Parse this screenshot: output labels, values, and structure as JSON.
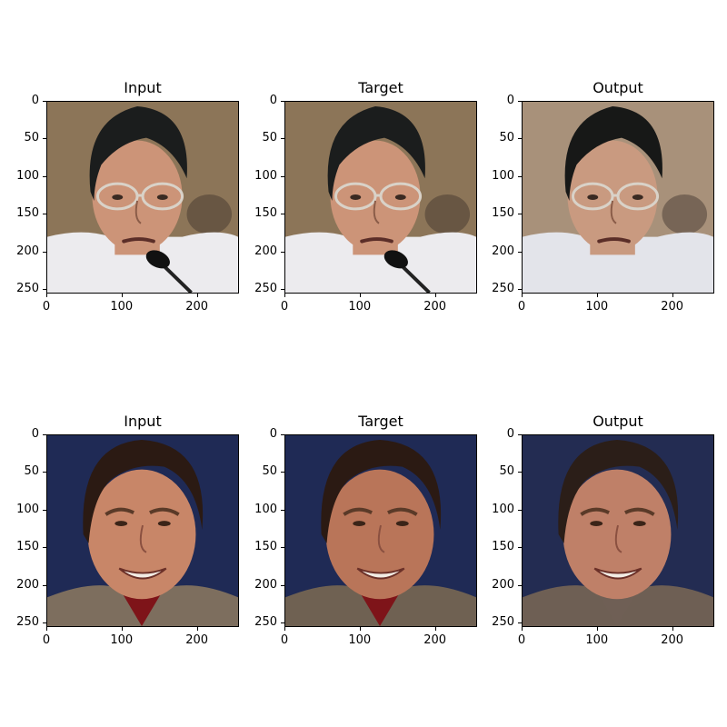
{
  "figure": {
    "rows": [
      {
        "panels": [
          {
            "title": "Input",
            "face": "asian-man-glasses-microphone",
            "colors": {
              "bg": "#8c7558",
              "hair": "#1b1d1d",
              "skin": "#cc9478",
              "shirt": "#ecebee",
              "lens": "#d9d2c8"
            }
          },
          {
            "title": "Target",
            "face": "asian-man-glasses-microphone",
            "colors": {
              "bg": "#8c7558",
              "hair": "#1b1d1d",
              "skin": "#cc9478",
              "shirt": "#ecebee",
              "lens": "#d9d2c8"
            }
          },
          {
            "title": "Output",
            "face": "asian-man-glasses-generated",
            "colors": {
              "bg": "#a8917a",
              "hair": "#171817",
              "skin": "#c99a80",
              "shirt": "#e3e4ea",
              "lens": "#d9d2c8"
            }
          }
        ]
      },
      {
        "panels": [
          {
            "title": "Input",
            "face": "smiling-man-suit",
            "colors": {
              "bg": "#1f2a55",
              "hair": "#2b1a13",
              "skin": "#c88668",
              "shirt": "#7e1419",
              "jacket": "#7d6e5e"
            }
          },
          {
            "title": "Target",
            "face": "smiling-man-suit",
            "colors": {
              "bg": "#1f2a55",
              "hair": "#2b1a13",
              "skin": "#b97559",
              "shirt": "#7e1419",
              "jacket": "#6f6152"
            }
          },
          {
            "title": "Output",
            "face": "smiling-man-generated",
            "colors": {
              "bg": "#232c52",
              "hair": "#2b1e18",
              "skin": "#bf8068",
              "shirt": "#6f5f55",
              "jacket": "#6e5f54"
            }
          }
        ]
      }
    ],
    "y_ticks": [
      "0",
      "50",
      "100",
      "150",
      "200",
      "250"
    ],
    "x_ticks": [
      "0",
      "100",
      "200"
    ]
  }
}
